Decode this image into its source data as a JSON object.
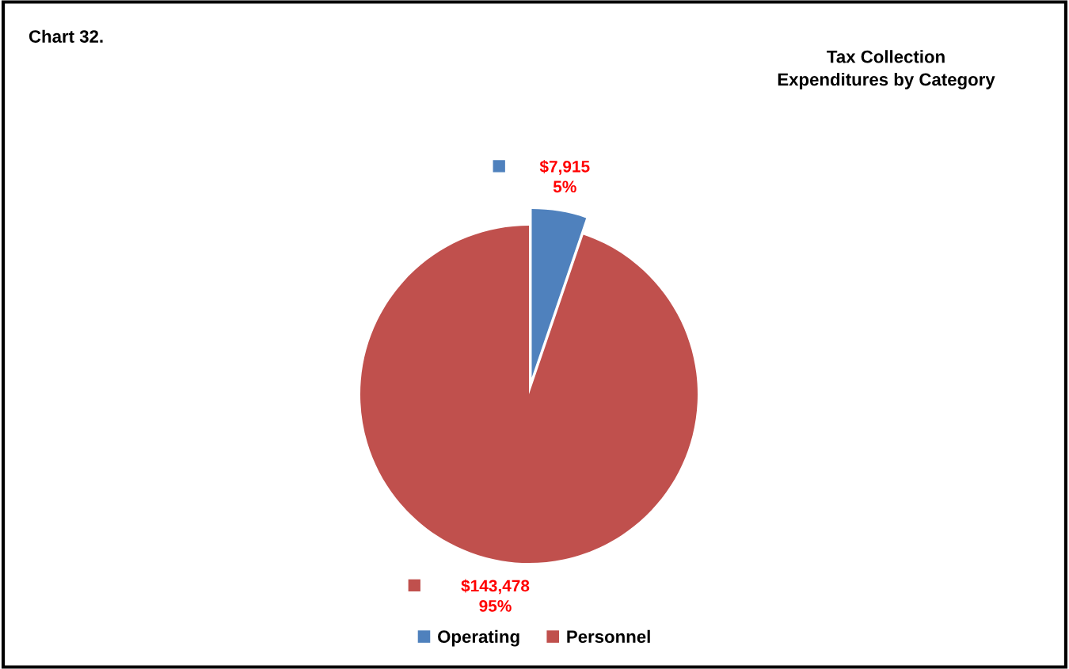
{
  "chart_data": {
    "type": "pie",
    "title": "Tax Collection\nExpenditures by Category",
    "annotations": [
      "Chart 32."
    ],
    "categories": [
      "Operating",
      "Personnel"
    ],
    "values": [
      7915,
      143478
    ],
    "colors": [
      "#4f81bd",
      "#c0504d"
    ],
    "value_labels": [
      "$7,915\n5%",
      "$143,478\n95%"
    ],
    "legend": "bottom"
  }
}
